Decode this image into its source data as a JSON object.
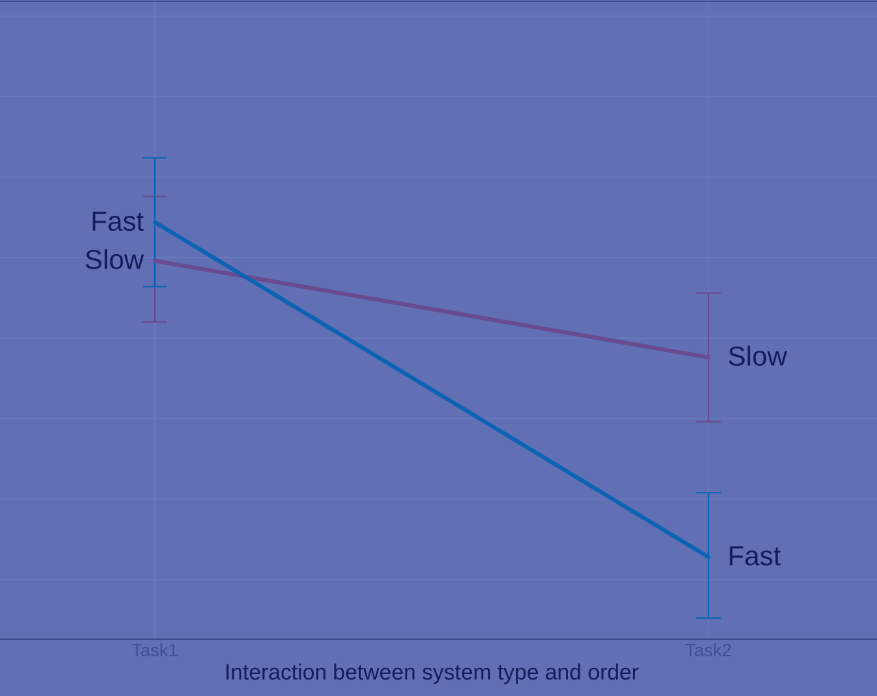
{
  "chart_data": {
    "type": "line",
    "xlabel": "Interaction between system type and order",
    "ylabel": "",
    "categories": [
      "Task1",
      "Task2"
    ],
    "ylim": [
      0,
      100
    ],
    "grid": true,
    "legend": "none",
    "series": [
      {
        "name": "Fast",
        "color": "#0d63b3",
        "values": [
          65.5,
          13.5
        ],
        "error_low": [
          55.5,
          4.0
        ],
        "error_high": [
          75.5,
          23.5
        ],
        "labels": [
          "Fast",
          "Fast"
        ]
      },
      {
        "name": "Slow",
        "color": "#6a4a90",
        "values": [
          59.5,
          44.5
        ],
        "error_low": [
          50.0,
          34.5
        ],
        "error_high": [
          69.5,
          54.5
        ],
        "labels": [
          "Slow",
          "Slow"
        ]
      }
    ]
  }
}
